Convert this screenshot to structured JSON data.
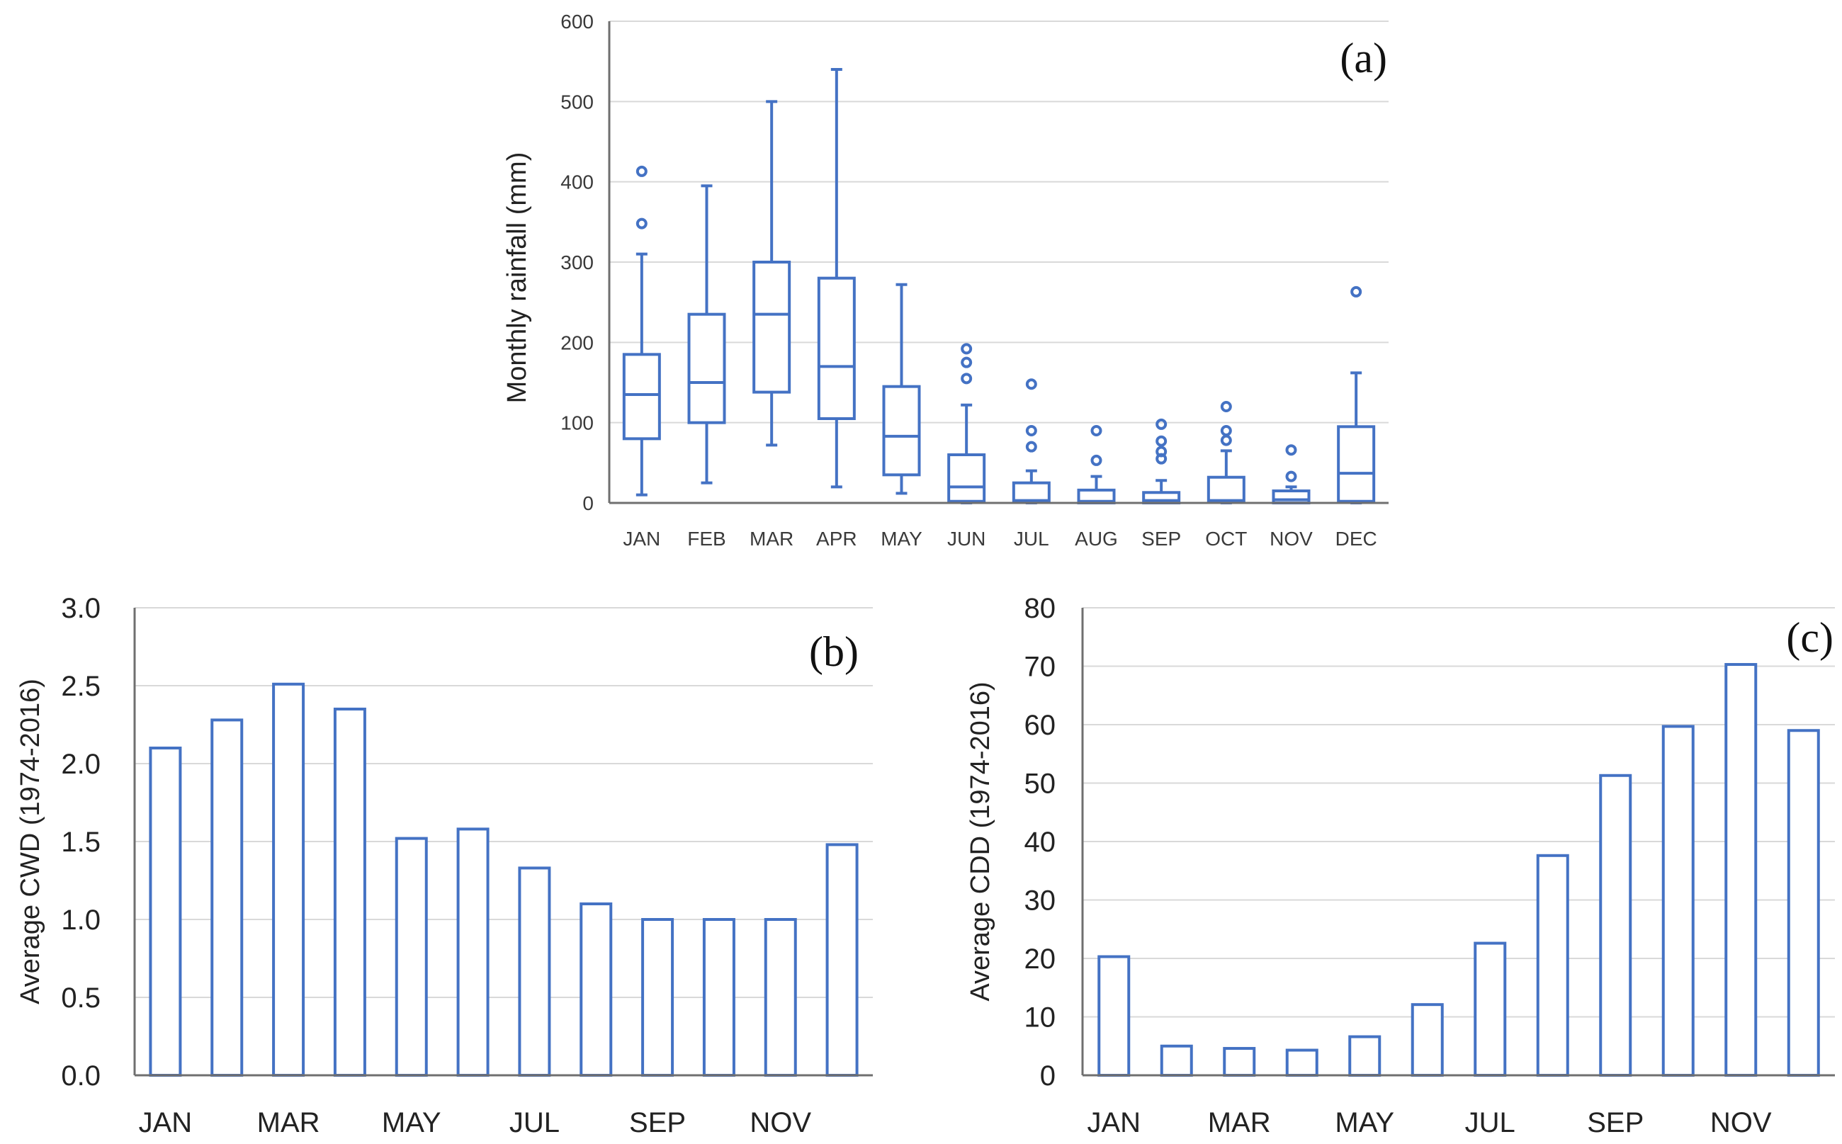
{
  "chart_data": [
    {
      "id": "a",
      "type": "box",
      "panel_label": "(a)",
      "ylabel": "Monthly rainfall  (mm)",
      "ylim": [
        0,
        600
      ],
      "yticks": [
        0,
        100,
        200,
        300,
        400,
        500,
        600
      ],
      "categories": [
        "JAN",
        "FEB",
        "MAR",
        "APR",
        "MAY",
        "JUN",
        "JUL",
        "AUG",
        "SEP",
        "OCT",
        "NOV",
        "DEC"
      ],
      "color": "#4472c4",
      "boxes": [
        {
          "min": 10,
          "q1": 80,
          "median": 135,
          "q3": 185,
          "max": 310,
          "outliers": [
            348,
            413
          ]
        },
        {
          "min": 25,
          "q1": 100,
          "median": 150,
          "q3": 235,
          "max": 395,
          "outliers": []
        },
        {
          "min": 72,
          "q1": 138,
          "median": 235,
          "q3": 300,
          "max": 500,
          "outliers": []
        },
        {
          "min": 20,
          "q1": 105,
          "median": 170,
          "q3": 280,
          "max": 540,
          "outliers": []
        },
        {
          "min": 12,
          "q1": 35,
          "median": 83,
          "q3": 145,
          "max": 272,
          "outliers": []
        },
        {
          "min": 0,
          "q1": 2,
          "median": 20,
          "q3": 60,
          "max": 122,
          "outliers": [
            155,
            175,
            192
          ]
        },
        {
          "min": 0,
          "q1": 1,
          "median": 3,
          "q3": 25,
          "max": 40,
          "outliers": [
            70,
            90,
            148
          ]
        },
        {
          "min": 0,
          "q1": 0,
          "median": 2,
          "q3": 16,
          "max": 33,
          "outliers": [
            53,
            90
          ]
        },
        {
          "min": 0,
          "q1": 0,
          "median": 3,
          "q3": 13,
          "max": 28,
          "outliers": [
            55,
            64,
            77,
            98
          ]
        },
        {
          "min": 0,
          "q1": 1,
          "median": 3,
          "q3": 32,
          "max": 65,
          "outliers": [
            78,
            90,
            120
          ]
        },
        {
          "min": 0,
          "q1": 0,
          "median": 4,
          "q3": 15,
          "max": 20,
          "outliers": [
            33,
            66
          ]
        },
        {
          "min": 0,
          "q1": 2,
          "median": 37,
          "q3": 95,
          "max": 162,
          "outliers": [
            263
          ]
        }
      ]
    },
    {
      "id": "b",
      "type": "bar",
      "panel_label": "(b)",
      "ylabel": "Average  CWD (1974-2016)",
      "ylim": [
        0,
        3.0
      ],
      "yticks": [
        "0.0",
        "0.5",
        "1.0",
        "1.5",
        "2.0",
        "2.5",
        "3.0"
      ],
      "categories": [
        "JAN",
        "FEB",
        "MAR",
        "APR",
        "MAY",
        "JUN",
        "JUL",
        "AUG",
        "SEP",
        "OCT",
        "NOV",
        "DEC"
      ],
      "xtick_labels": [
        "JAN",
        "",
        "MAR",
        "",
        "MAY",
        "",
        "JUL",
        "",
        "SEP",
        "",
        "NOV",
        ""
      ],
      "values": [
        2.1,
        2.28,
        2.51,
        2.35,
        1.52,
        1.58,
        1.33,
        1.1,
        1.0,
        1.0,
        1.0,
        1.48
      ],
      "color": "#4472c4"
    },
    {
      "id": "c",
      "type": "bar",
      "panel_label": "(c)",
      "ylabel": "Average  CDD (1974-2016)",
      "ylim": [
        0,
        80
      ],
      "yticks": [
        "0",
        "10",
        "20",
        "30",
        "40",
        "50",
        "60",
        "70",
        "80"
      ],
      "categories": [
        "JAN",
        "FEB",
        "MAR",
        "APR",
        "MAY",
        "JUN",
        "JUL",
        "AUG",
        "SEP",
        "OCT",
        "NOV",
        "DEC"
      ],
      "xtick_labels": [
        "JAN",
        "",
        "MAR",
        "",
        "MAY",
        "",
        "JUL",
        "",
        "SEP",
        "",
        "NOV",
        ""
      ],
      "values": [
        20.3,
        5.0,
        4.6,
        4.3,
        6.6,
        12.1,
        22.6,
        37.6,
        51.3,
        59.7,
        70.3,
        59.0
      ],
      "color": "#4472c4"
    }
  ]
}
